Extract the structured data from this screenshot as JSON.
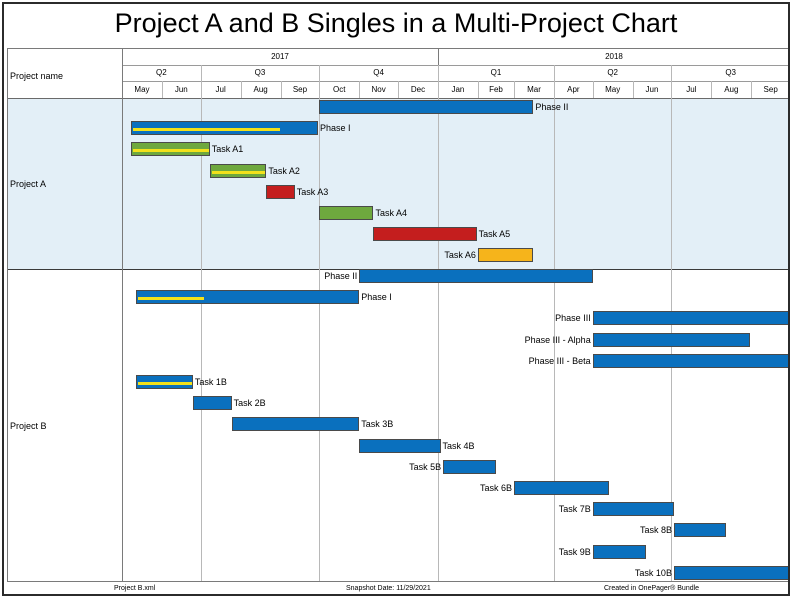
{
  "title": "Project A and B Singles in a Multi-Project Chart",
  "header": {
    "row_label": "Project name",
    "years": [
      "2017",
      "2018"
    ],
    "quarters": [
      "Q2",
      "Q3",
      "Q4",
      "Q1",
      "Q2",
      "Q3"
    ],
    "months": [
      "May",
      "Jun",
      "Jul",
      "Aug",
      "Sep",
      "Oct",
      "Nov",
      "Dec",
      "Jan",
      "Feb",
      "Mar",
      "Apr",
      "May",
      "Jun",
      "Jul",
      "Aug",
      "Sep"
    ]
  },
  "colors": {
    "blue": "#0a70be",
    "green": "#6ea83e",
    "red": "#c41e1e",
    "orange": "#f6b41b",
    "progress": "#f2e11b",
    "project_a_background": "#e3eff7"
  },
  "groups": [
    {
      "name": "Project A",
      "rows": [
        {
          "label": "Phase II",
          "color": "blue",
          "start": "2017-10-01",
          "end": "2018-03-16",
          "label_side": "right"
        },
        {
          "label": "Phase I",
          "color": "blue",
          "start": "2017-05-08",
          "end": "2017-09-30",
          "progress": 0.8,
          "label_side": "right"
        },
        {
          "label": "Task A1",
          "color": "green",
          "start": "2017-05-08",
          "end": "2017-07-08",
          "progress": 1.0,
          "label_side": "right"
        },
        {
          "label": "Task A2",
          "color": "green",
          "start": "2017-07-08",
          "end": "2017-08-21",
          "progress": 1.0,
          "label_side": "right"
        },
        {
          "label": "Task A3",
          "color": "red",
          "start": "2017-08-21",
          "end": "2017-09-12",
          "label_side": "right"
        },
        {
          "label": "Task A4",
          "color": "green",
          "start": "2017-10-01",
          "end": "2017-11-12",
          "label_side": "right"
        },
        {
          "label": "Task A5",
          "color": "red",
          "start": "2017-11-12",
          "end": "2018-01-31",
          "label_side": "right"
        },
        {
          "label": "Task A6",
          "color": "orange",
          "start": "2018-02-01",
          "end": "2018-03-16",
          "label_side": "left"
        }
      ]
    },
    {
      "name": "Project B",
      "rows": [
        {
          "label": "Phase II",
          "color": "blue",
          "start": "2017-11-01",
          "end": "2018-05-01",
          "label_side": "left"
        },
        {
          "label": "Phase I",
          "color": "blue",
          "start": "2017-05-12",
          "end": "2017-11-01",
          "progress": 0.3,
          "label_side": "right"
        },
        {
          "label": "Phase III",
          "color": "blue",
          "start": "2018-05-01",
          "end": "2018-09-30",
          "label_side": "left"
        },
        {
          "label": "Phase III - Alpha",
          "color": "blue",
          "start": "2018-05-01",
          "end": "2018-08-31",
          "label_side": "left"
        },
        {
          "label": "Phase III - Beta",
          "color": "blue",
          "start": "2018-05-01",
          "end": "2018-09-30",
          "label_side": "left"
        },
        {
          "label": "Task 1B",
          "color": "blue",
          "start": "2017-05-12",
          "end": "2017-06-25",
          "progress": 1.0,
          "label_side": "right"
        },
        {
          "label": "Task 2B",
          "color": "blue",
          "start": "2017-06-25",
          "end": "2017-07-25",
          "label_side": "right"
        },
        {
          "label": "Task 3B",
          "color": "blue",
          "start": "2017-07-25",
          "end": "2017-11-01",
          "label_side": "right"
        },
        {
          "label": "Task 4B",
          "color": "blue",
          "start": "2017-11-01",
          "end": "2018-01-03",
          "label_side": "right"
        },
        {
          "label": "Task 5B",
          "color": "blue",
          "start": "2018-01-05",
          "end": "2018-02-15",
          "label_side": "left"
        },
        {
          "label": "Task 6B",
          "color": "blue",
          "start": "2018-03-01",
          "end": "2018-05-14",
          "label_side": "left"
        },
        {
          "label": "Task 7B",
          "color": "blue",
          "start": "2018-05-01",
          "end": "2018-07-03",
          "label_side": "left"
        },
        {
          "label": "Task 8B",
          "color": "blue",
          "start": "2018-07-03",
          "end": "2018-08-12",
          "label_side": "left"
        },
        {
          "label": "Task 9B",
          "color": "blue",
          "start": "2018-05-01",
          "end": "2018-06-11",
          "label_side": "left"
        },
        {
          "label": "Task 10B",
          "color": "blue",
          "start": "2018-07-03",
          "end": "2018-09-30",
          "label_side": "left"
        }
      ]
    }
  ],
  "footer": {
    "file": "Project B.xml",
    "snapshot": "Snapshot Date: 11/29/2021",
    "created": "Created in OnePager® Bundle"
  }
}
